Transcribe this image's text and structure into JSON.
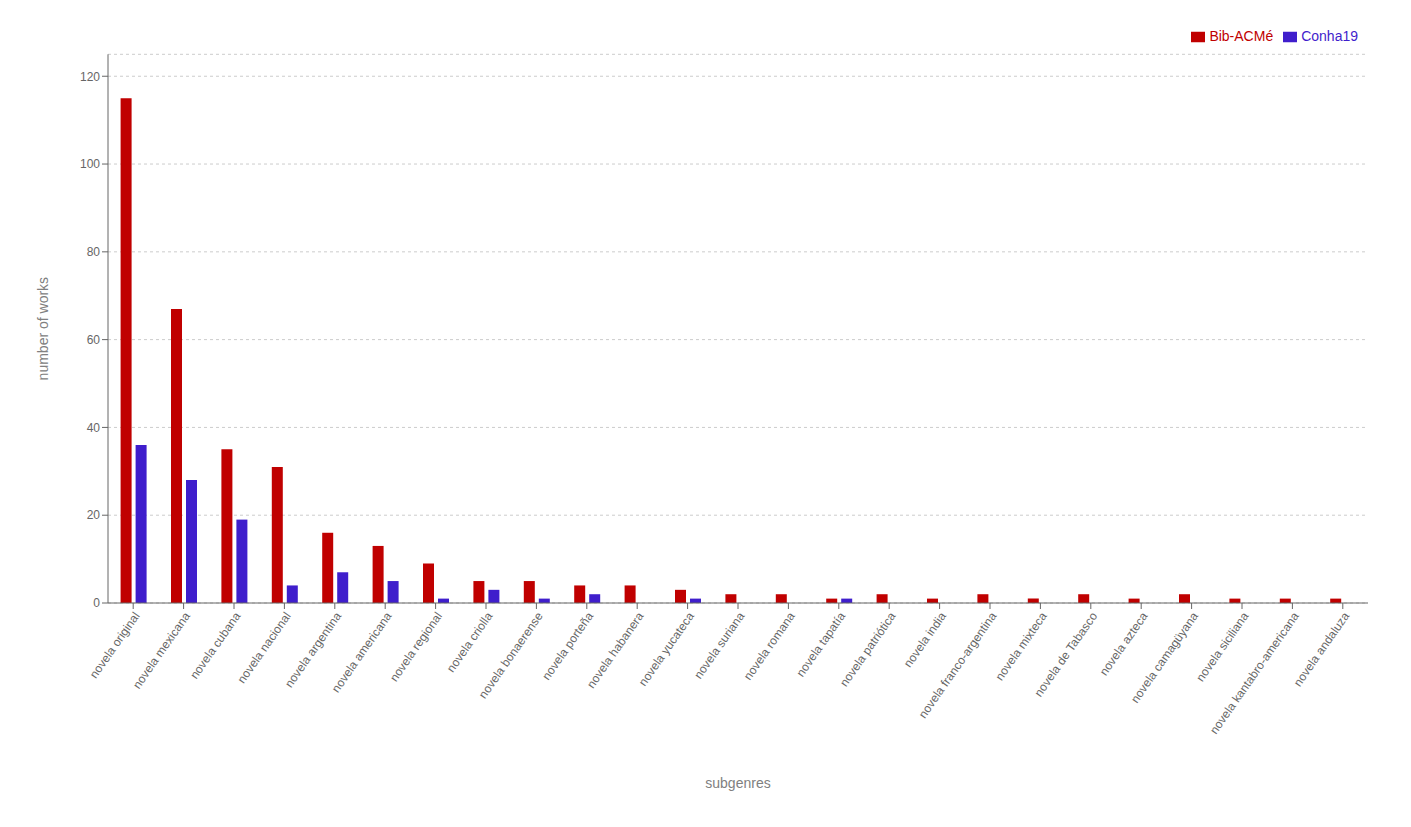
{
  "chart_data": {
    "type": "bar",
    "categories": [
      "novela original",
      "novela mexicana",
      "novela cubana",
      "novela nacional",
      "novela argentina",
      "novela americana",
      "novela regional",
      "novela criolla",
      "novela bonaerense",
      "novela porteña",
      "novela habanera",
      "novela yucateca",
      "novela suriana",
      "novela romana",
      "novela tapatía",
      "novela patriótica",
      "novela india",
      "novela franco-argentina",
      "novela mixteca",
      "novela de Tabasco",
      "novela azteca",
      "novela camagüyana",
      "novela siciliana",
      "novela kantabro-americana",
      "novela andaluza"
    ],
    "series": [
      {
        "name": "Bib-ACMé",
        "color": "#c00000",
        "values": [
          115,
          67,
          35,
          31,
          16,
          13,
          9,
          5,
          5,
          4,
          4,
          3,
          2,
          2,
          1,
          2,
          1,
          2,
          1,
          2,
          1,
          2,
          1,
          1,
          1
        ]
      },
      {
        "name": "Conha19",
        "color": "#3f1ecc",
        "values": [
          36,
          28,
          19,
          4,
          7,
          5,
          1,
          3,
          1,
          2,
          0,
          1,
          0,
          0,
          1,
          0,
          0,
          0,
          0,
          0,
          0,
          0,
          0,
          0,
          0
        ]
      }
    ],
    "xlabel": "subgenres",
    "ylabel": "number of works",
    "ylim": [
      0,
      125
    ],
    "yticks": [
      0,
      20,
      40,
      60,
      80,
      100,
      120
    ],
    "grid": true,
    "legend": "upper right"
  }
}
